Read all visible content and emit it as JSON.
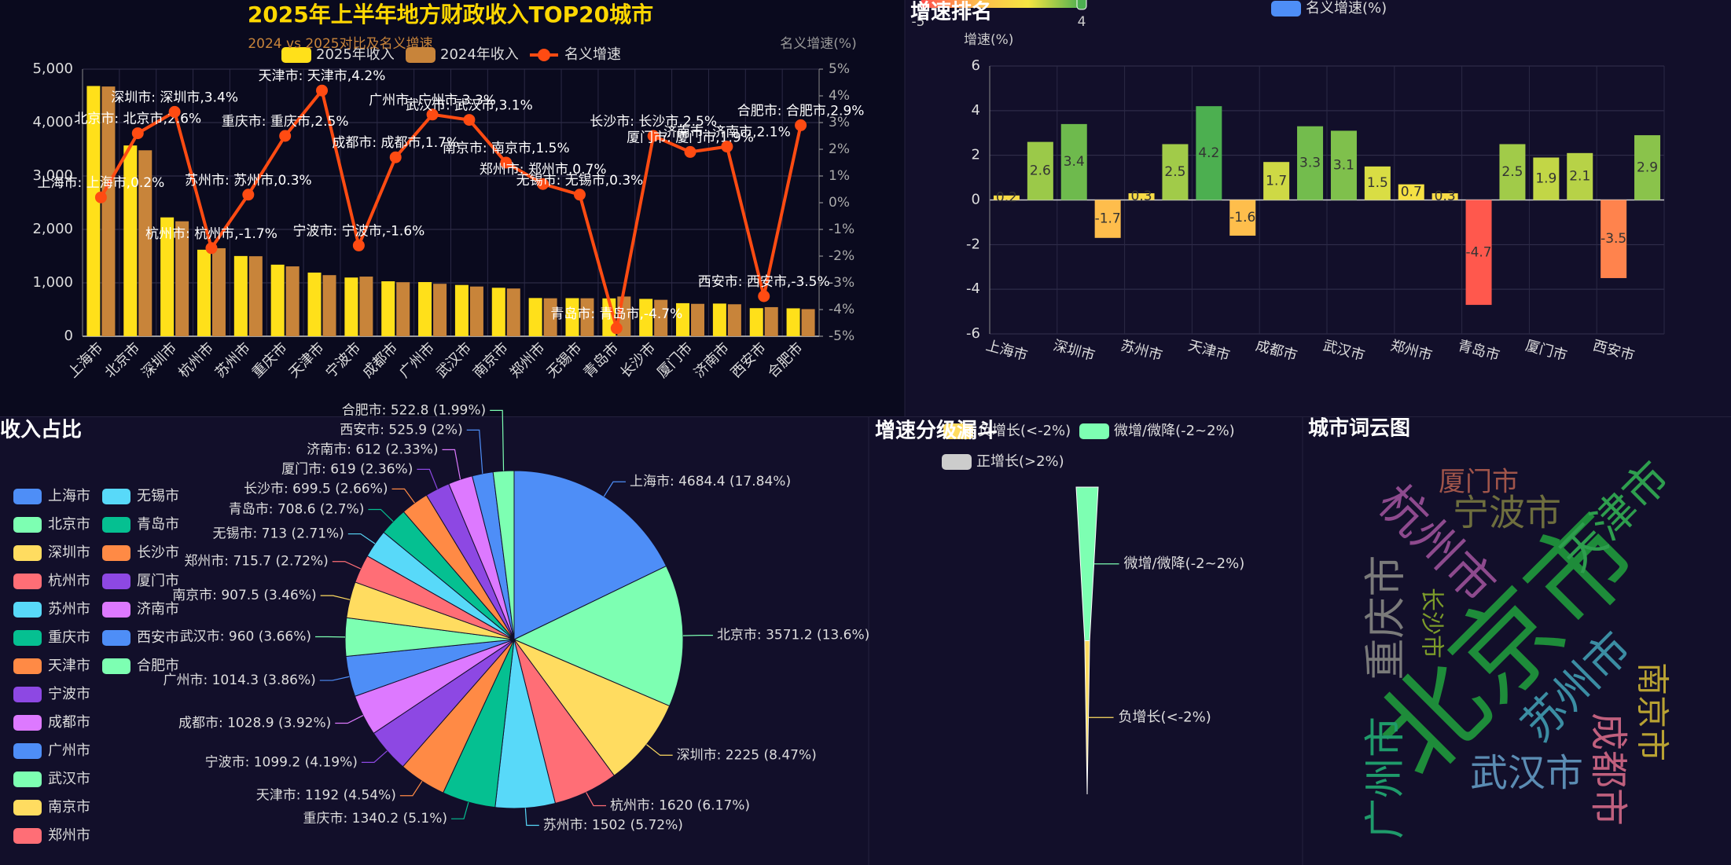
{
  "chart_data": [
    {
      "type": "bar",
      "title": "2025年上半年地方财政收入TOP20城市",
      "subtitle": "2024 vs 2025对比及名义增速",
      "y2_label": "名义增速(%)",
      "categories": [
        "上海市",
        "北京市",
        "深圳市",
        "杭州市",
        "苏州市",
        "重庆市",
        "天津市",
        "宁波市",
        "成都市",
        "广州市",
        "武汉市",
        "南京市",
        "郑州市",
        "无锡市",
        "青岛市",
        "长沙市",
        "厦门市",
        "济南市",
        "西安市",
        "合肥市"
      ],
      "series": [
        {
          "name": "2025年收入",
          "color": "#ffe01a",
          "values": [
            4684.4,
            3571.2,
            2225,
            1620,
            1502,
            1340.2,
            1192,
            1099.2,
            1028.9,
            1014.3,
            960,
            907.5,
            715.7,
            713,
            708.6,
            699.5,
            619,
            612,
            525.9,
            522.8
          ]
        },
        {
          "name": "2024年收入",
          "color": "#c8843a",
          "values": [
            4675,
            3481,
            2152,
            1648,
            1498,
            1308,
            1144,
            1117,
            1012,
            982,
            931,
            894,
            711,
            711,
            744,
            682,
            607,
            599,
            545,
            508
          ]
        },
        {
          "name": "名义增速",
          "type": "line",
          "axis": "y2",
          "color": "#ff4b12",
          "values": [
            0.2,
            2.6,
            3.4,
            -1.7,
            0.3,
            2.5,
            4.2,
            -1.6,
            1.7,
            3.3,
            3.1,
            1.5,
            0.7,
            0.3,
            -4.7,
            2.5,
            1.9,
            2.1,
            -3.5,
            2.9
          ],
          "value_labels": [
            "上海市: 上海市,0.2%",
            "北京市: 北京市,2.6%",
            "深圳市: 深圳市,3.4%",
            "杭州市: 杭州市,-1.7%",
            "苏州市: 苏州市,0.3%",
            "重庆市: 重庆市,2.5%",
            "天津市: 天津市,4.2%",
            "宁波市: 宁波市,-1.6%",
            "成都市: 成都市,1.7%",
            "广州市: 广州市,3.3%",
            "武汉市: 武汉市,3.1%",
            "南京市: 南京市,1.5%",
            "郑州市: 郑州市,0.7%",
            "无锡市: 无锡市,0.3%",
            "青岛市: 青岛市,-4.7%",
            "长沙市: 长沙市,2.5%",
            "厦门市: 厦门市,1.9%",
            "济南市: 济南市,2.1%",
            "西安市: 西安市,-3.5%",
            "合肥市: 合肥市,2.9%"
          ]
        }
      ],
      "ylim": [
        0,
        5000
      ],
      "yticks": [
        0,
        {
          "value": 1000,
          "label": "1,000"
        },
        {
          "value": 2000,
          "label": "2,000"
        },
        {
          "value": 3000,
          "label": "3,000"
        },
        {
          "value": 4000,
          "label": "4,000"
        },
        {
          "value": 5000,
          "label": "5,000"
        }
      ],
      "y2lim": [
        -5,
        5
      ],
      "y2ticks": [
        {
          "value": -5,
          "label": "-5%"
        },
        {
          "value": -4,
          "label": "-4%"
        },
        {
          "value": -3,
          "label": "-3%"
        },
        {
          "value": -2,
          "label": "-2%"
        },
        {
          "value": -1,
          "label": "-1%"
        },
        {
          "value": 0,
          "label": "0%"
        },
        {
          "value": 1,
          "label": "1%"
        },
        {
          "value": 2,
          "label": "2%"
        },
        {
          "value": 3,
          "label": "3%"
        },
        {
          "value": 4,
          "label": "4%"
        },
        {
          "value": 5,
          "label": "5%"
        }
      ],
      "grid": true
    },
    {
      "type": "bar",
      "title": "增速排名",
      "ylabel": "增速(%)",
      "categories": [
        "上海市",
        null,
        "深圳市",
        null,
        "苏州市",
        null,
        "天津市",
        null,
        "成都市",
        null,
        "武汉市",
        null,
        "郑州市",
        null,
        "青岛市",
        null,
        "厦门市",
        null,
        "西安市",
        null
      ],
      "series": [
        {
          "name": "名义增速(%)",
          "color": "#4e8ef7",
          "values": [
            0.2,
            2.6,
            3.4,
            -1.7,
            0.3,
            2.5,
            4.2,
            -1.6,
            1.7,
            3.3,
            3.1,
            1.5,
            0.7,
            0.3,
            -4.7,
            2.5,
            1.9,
            2.1,
            -3.5,
            2.9
          ]
        }
      ],
      "visual_map": {
        "min": -5,
        "max": 4,
        "colors": [
          "#ff4d4d",
          "#ffb84d",
          "#f5e642",
          "#4caf50"
        ]
      },
      "ylim": [
        -6,
        6
      ],
      "yticks": [
        -6,
        -4,
        -2,
        0,
        2,
        4,
        6
      ],
      "grid": true
    },
    {
      "type": "pie",
      "title": "收入占比",
      "categories": [
        "上海市",
        "北京市",
        "深圳市",
        "杭州市",
        "苏州市",
        "重庆市",
        "天津市",
        "宁波市",
        "成都市",
        "广州市",
        "武汉市",
        "南京市",
        "郑州市",
        "无锡市",
        "青岛市",
        "长沙市",
        "厦门市",
        "济南市",
        "西安市",
        "合肥市"
      ],
      "values": [
        4684.4,
        3571.2,
        2225,
        1620,
        1502,
        1340.2,
        1192,
        1099.2,
        1028.9,
        1014.3,
        960,
        907.5,
        715.7,
        713,
        708.6,
        699.5,
        619,
        612,
        525.9,
        522.8
      ],
      "value_labels": [
        "上海市: 4684.4 (17.84%)",
        "北京市: 3571.2 (13.6%)",
        "深圳市: 2225 (8.47%)",
        "杭州市: 1620 (6.17%)",
        "苏州市: 1502 (5.72%)",
        "重庆市: 1340.2 (5.1%)",
        "天津市: 1192 (4.54%)",
        "宁波市: 1099.2 (4.19%)",
        "成都市: 1028.9 (3.92%)",
        "广州市: 1014.3 (3.86%)",
        "武汉市: 960 (3.66%)",
        "南京市: 907.5 (3.46%)",
        "郑州市: 715.7 (2.72%)",
        "无锡市: 713 (2.71%)",
        "青岛市: 708.6 (2.7%)",
        "长沙市: 699.5 (2.66%)",
        "厦门市: 619 (2.36%)",
        "济南市: 612 (2.33%)",
        "西安市: 525.9 (2%)",
        "合肥市: 522.8 (1.99%)"
      ],
      "colors": [
        "#4e8ef7",
        "#7dffb2",
        "#ffdc60",
        "#ff6e76",
        "#58d9f9",
        "#05c091",
        "#ff8a45",
        "#8d48e3",
        "#dd79ff",
        "#4e8ef7",
        "#7dffb2",
        "#ffdc60",
        "#ff6e76",
        "#58d9f9",
        "#05c091",
        "#ff8a45",
        "#8d48e3",
        "#dd79ff",
        "#4e8ef7",
        "#7dffb2"
      ]
    },
    {
      "type": "funnel",
      "title": "增速分级漏斗",
      "sort": "descending",
      "items": [
        {
          "name": "负增长(<-2%)",
          "value": 2,
          "color": "#ffdc60"
        },
        {
          "name": "微增/微降(-2~2%)",
          "value": 9,
          "color": "#7dffb2"
        },
        {
          "name": "正增长(>2%)",
          "selected": false
        }
      ]
    },
    {
      "type": "wordcloud",
      "title": "城市词云图",
      "words": [
        {
          "name": "北京市",
          "color": "#1e8c3a"
        },
        {
          "name": "天津市",
          "color": "#2e9e4e"
        },
        {
          "name": "杭州市",
          "color": "#8e4a8e"
        },
        {
          "name": "宁波市",
          "color": "#6e6e3e"
        },
        {
          "name": "厦门市",
          "color": "#a0554a"
        },
        {
          "name": "重庆市",
          "color": "#7a7a7a"
        },
        {
          "name": "长沙市",
          "color": "#7c9b2a"
        },
        {
          "name": "苏州市",
          "color": "#3b8da3"
        },
        {
          "name": "南京市",
          "color": "#b9a233"
        },
        {
          "name": "成都市",
          "color": "#c0607e"
        },
        {
          "name": "广州市",
          "color": "#1f9b6b"
        },
        {
          "name": "武汉市",
          "color": "#5b8cb3"
        }
      ]
    }
  ]
}
